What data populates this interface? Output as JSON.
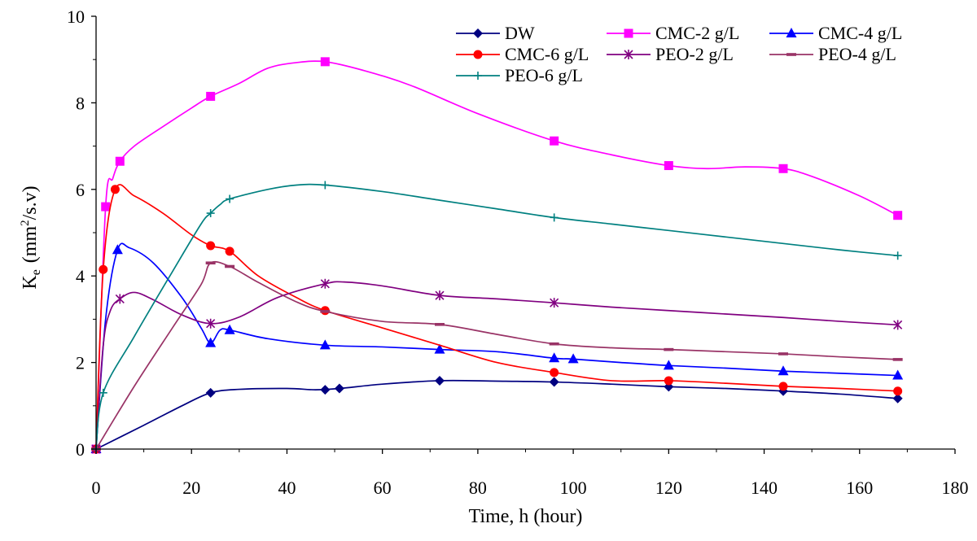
{
  "chart_data": {
    "type": "line",
    "title": "",
    "xlabel": "Time, h (hour)",
    "ylabel": {
      "base": "K",
      "sub": "e",
      "unit_pre": "(mm",
      "sup": "2",
      "unit_post": "/s.v)"
    },
    "xlim": [
      0,
      180
    ],
    "ylim": [
      0,
      10
    ],
    "xticks": [
      "0",
      "20",
      "40",
      "60",
      "80",
      "100",
      "120",
      "140",
      "160",
      "180"
    ],
    "yticks": [
      "0",
      "2",
      "4",
      "6",
      "8",
      "10"
    ],
    "grid": false,
    "legend_position": "top-right",
    "series": [
      {
        "name": "DW",
        "color": "#000080",
        "marker": "diamond",
        "points": [
          [
            0,
            0
          ],
          [
            24,
            1.3
          ],
          [
            48,
            1.37
          ],
          [
            51,
            1.4
          ],
          [
            72,
            1.58
          ],
          [
            96,
            1.55
          ],
          [
            120,
            1.44
          ],
          [
            144,
            1.34
          ],
          [
            168,
            1.17
          ]
        ],
        "curve": [
          [
            0,
            0
          ],
          [
            10,
            0.55
          ],
          [
            18,
            1.0
          ],
          [
            24,
            1.3
          ],
          [
            30,
            1.38
          ],
          [
            40,
            1.4
          ],
          [
            46,
            1.37
          ],
          [
            51,
            1.4
          ],
          [
            60,
            1.5
          ],
          [
            72,
            1.58
          ],
          [
            84,
            1.57
          ],
          [
            96,
            1.55
          ],
          [
            108,
            1.5
          ],
          [
            120,
            1.44
          ],
          [
            132,
            1.4
          ],
          [
            144,
            1.34
          ],
          [
            156,
            1.27
          ],
          [
            168,
            1.17
          ]
        ]
      },
      {
        "name": "CMC-2 g/L",
        "color": "#ff00ff",
        "marker": "square",
        "points": [
          [
            0,
            0
          ],
          [
            2,
            5.6
          ],
          [
            5,
            6.65
          ],
          [
            24,
            8.15
          ],
          [
            48,
            8.95
          ],
          [
            96,
            7.12
          ],
          [
            120,
            6.55
          ],
          [
            144,
            6.48
          ],
          [
            168,
            5.4
          ]
        ],
        "curve": [
          [
            0,
            0
          ],
          [
            2,
            5.6
          ],
          [
            3.5,
            6.25
          ],
          [
            5,
            6.65
          ],
          [
            8,
            7.0
          ],
          [
            14,
            7.45
          ],
          [
            20,
            7.88
          ],
          [
            24,
            8.15
          ],
          [
            30,
            8.45
          ],
          [
            36,
            8.8
          ],
          [
            42,
            8.93
          ],
          [
            48,
            8.95
          ],
          [
            56,
            8.75
          ],
          [
            66,
            8.4
          ],
          [
            80,
            7.75
          ],
          [
            96,
            7.12
          ],
          [
            108,
            6.8
          ],
          [
            120,
            6.55
          ],
          [
            128,
            6.48
          ],
          [
            136,
            6.52
          ],
          [
            144,
            6.48
          ],
          [
            150,
            6.3
          ],
          [
            160,
            5.85
          ],
          [
            168,
            5.4
          ]
        ]
      },
      {
        "name": "CMC-4 g/L",
        "color": "#0000ff",
        "marker": "triangle",
        "points": [
          [
            0,
            0
          ],
          [
            4.5,
            4.6
          ],
          [
            24,
            2.45
          ],
          [
            28,
            2.75
          ],
          [
            48,
            2.4
          ],
          [
            72,
            2.3
          ],
          [
            96,
            2.1
          ],
          [
            100,
            2.08
          ],
          [
            120,
            1.93
          ],
          [
            144,
            1.8
          ],
          [
            168,
            1.7
          ]
        ],
        "curve": [
          [
            0,
            0
          ],
          [
            2,
            3.0
          ],
          [
            4.5,
            4.6
          ],
          [
            7,
            4.65
          ],
          [
            12,
            4.3
          ],
          [
            18,
            3.5
          ],
          [
            22,
            2.8
          ],
          [
            24,
            2.45
          ],
          [
            26,
            2.75
          ],
          [
            28,
            2.75
          ],
          [
            36,
            2.55
          ],
          [
            48,
            2.4
          ],
          [
            60,
            2.36
          ],
          [
            72,
            2.3
          ],
          [
            84,
            2.25
          ],
          [
            96,
            2.1
          ],
          [
            100,
            2.08
          ],
          [
            110,
            2.0
          ],
          [
            120,
            1.93
          ],
          [
            132,
            1.87
          ],
          [
            144,
            1.8
          ],
          [
            156,
            1.75
          ],
          [
            168,
            1.7
          ]
        ]
      },
      {
        "name": "CMC-6 g/L",
        "color": "#ff0000",
        "marker": "circle",
        "points": [
          [
            0,
            0
          ],
          [
            1.5,
            4.15
          ],
          [
            4,
            6.0
          ],
          [
            24,
            4.7
          ],
          [
            28,
            4.57
          ],
          [
            48,
            3.2
          ],
          [
            96,
            1.77
          ],
          [
            120,
            1.58
          ],
          [
            144,
            1.45
          ],
          [
            168,
            1.34
          ]
        ],
        "curve": [
          [
            0,
            0
          ],
          [
            1.5,
            4.15
          ],
          [
            4,
            6.0
          ],
          [
            8,
            5.85
          ],
          [
            14,
            5.45
          ],
          [
            20,
            4.95
          ],
          [
            24,
            4.7
          ],
          [
            28,
            4.57
          ],
          [
            34,
            4.0
          ],
          [
            42,
            3.5
          ],
          [
            48,
            3.2
          ],
          [
            60,
            2.8
          ],
          [
            72,
            2.4
          ],
          [
            84,
            2.0
          ],
          [
            96,
            1.77
          ],
          [
            108,
            1.58
          ],
          [
            120,
            1.58
          ],
          [
            132,
            1.52
          ],
          [
            144,
            1.45
          ],
          [
            156,
            1.4
          ],
          [
            168,
            1.34
          ]
        ]
      },
      {
        "name": "PEO-2 g/L",
        "color": "#800080",
        "marker": "asterisk",
        "points": [
          [
            0,
            0
          ],
          [
            5,
            3.47
          ],
          [
            24,
            2.9
          ],
          [
            48,
            3.82
          ],
          [
            72,
            3.55
          ],
          [
            96,
            3.38
          ],
          [
            168,
            2.87
          ]
        ],
        "curve": [
          [
            0,
            0
          ],
          [
            1.5,
            2.4
          ],
          [
            3,
            3.2
          ],
          [
            5,
            3.47
          ],
          [
            8,
            3.62
          ],
          [
            12,
            3.45
          ],
          [
            18,
            3.1
          ],
          [
            24,
            2.9
          ],
          [
            30,
            3.05
          ],
          [
            38,
            3.5
          ],
          [
            48,
            3.82
          ],
          [
            52,
            3.86
          ],
          [
            60,
            3.77
          ],
          [
            72,
            3.55
          ],
          [
            84,
            3.47
          ],
          [
            96,
            3.38
          ],
          [
            108,
            3.28
          ],
          [
            120,
            3.2
          ],
          [
            132,
            3.12
          ],
          [
            144,
            3.04
          ],
          [
            156,
            2.95
          ],
          [
            168,
            2.87
          ]
        ]
      },
      {
        "name": "PEO-4 g/L",
        "color": "#993366",
        "marker": "dash",
        "points": [
          [
            0,
            0
          ],
          [
            24,
            4.3
          ],
          [
            28,
            4.22
          ],
          [
            48,
            3.18
          ],
          [
            72,
            2.88
          ],
          [
            96,
            2.43
          ],
          [
            120,
            2.3
          ],
          [
            144,
            2.2
          ],
          [
            168,
            2.07
          ]
        ],
        "curve": [
          [
            0,
            0
          ],
          [
            8,
            1.45
          ],
          [
            16,
            2.8
          ],
          [
            22,
            3.8
          ],
          [
            24,
            4.3
          ],
          [
            28,
            4.22
          ],
          [
            34,
            3.85
          ],
          [
            42,
            3.4
          ],
          [
            48,
            3.18
          ],
          [
            60,
            2.95
          ],
          [
            72,
            2.88
          ],
          [
            84,
            2.65
          ],
          [
            96,
            2.43
          ],
          [
            108,
            2.34
          ],
          [
            120,
            2.3
          ],
          [
            132,
            2.25
          ],
          [
            144,
            2.2
          ],
          [
            156,
            2.13
          ],
          [
            168,
            2.07
          ]
        ]
      },
      {
        "name": "PEO-6 g/L",
        "color": "#008080",
        "marker": "plus",
        "points": [
          [
            0,
            0
          ],
          [
            1.5,
            1.3
          ],
          [
            24,
            5.45
          ],
          [
            28,
            5.78
          ],
          [
            48,
            6.1
          ],
          [
            96,
            5.35
          ],
          [
            168,
            4.47
          ]
        ],
        "curve": [
          [
            0,
            0
          ],
          [
            1.5,
            1.3
          ],
          [
            8,
            2.6
          ],
          [
            16,
            4.1
          ],
          [
            22,
            5.2
          ],
          [
            24,
            5.45
          ],
          [
            26,
            5.65
          ],
          [
            28,
            5.78
          ],
          [
            36,
            6.0
          ],
          [
            42,
            6.1
          ],
          [
            48,
            6.1
          ],
          [
            60,
            5.95
          ],
          [
            72,
            5.75
          ],
          [
            84,
            5.55
          ],
          [
            96,
            5.35
          ],
          [
            108,
            5.2
          ],
          [
            120,
            5.05
          ],
          [
            132,
            4.9
          ],
          [
            144,
            4.75
          ],
          [
            156,
            4.6
          ],
          [
            168,
            4.47
          ]
        ]
      }
    ]
  }
}
